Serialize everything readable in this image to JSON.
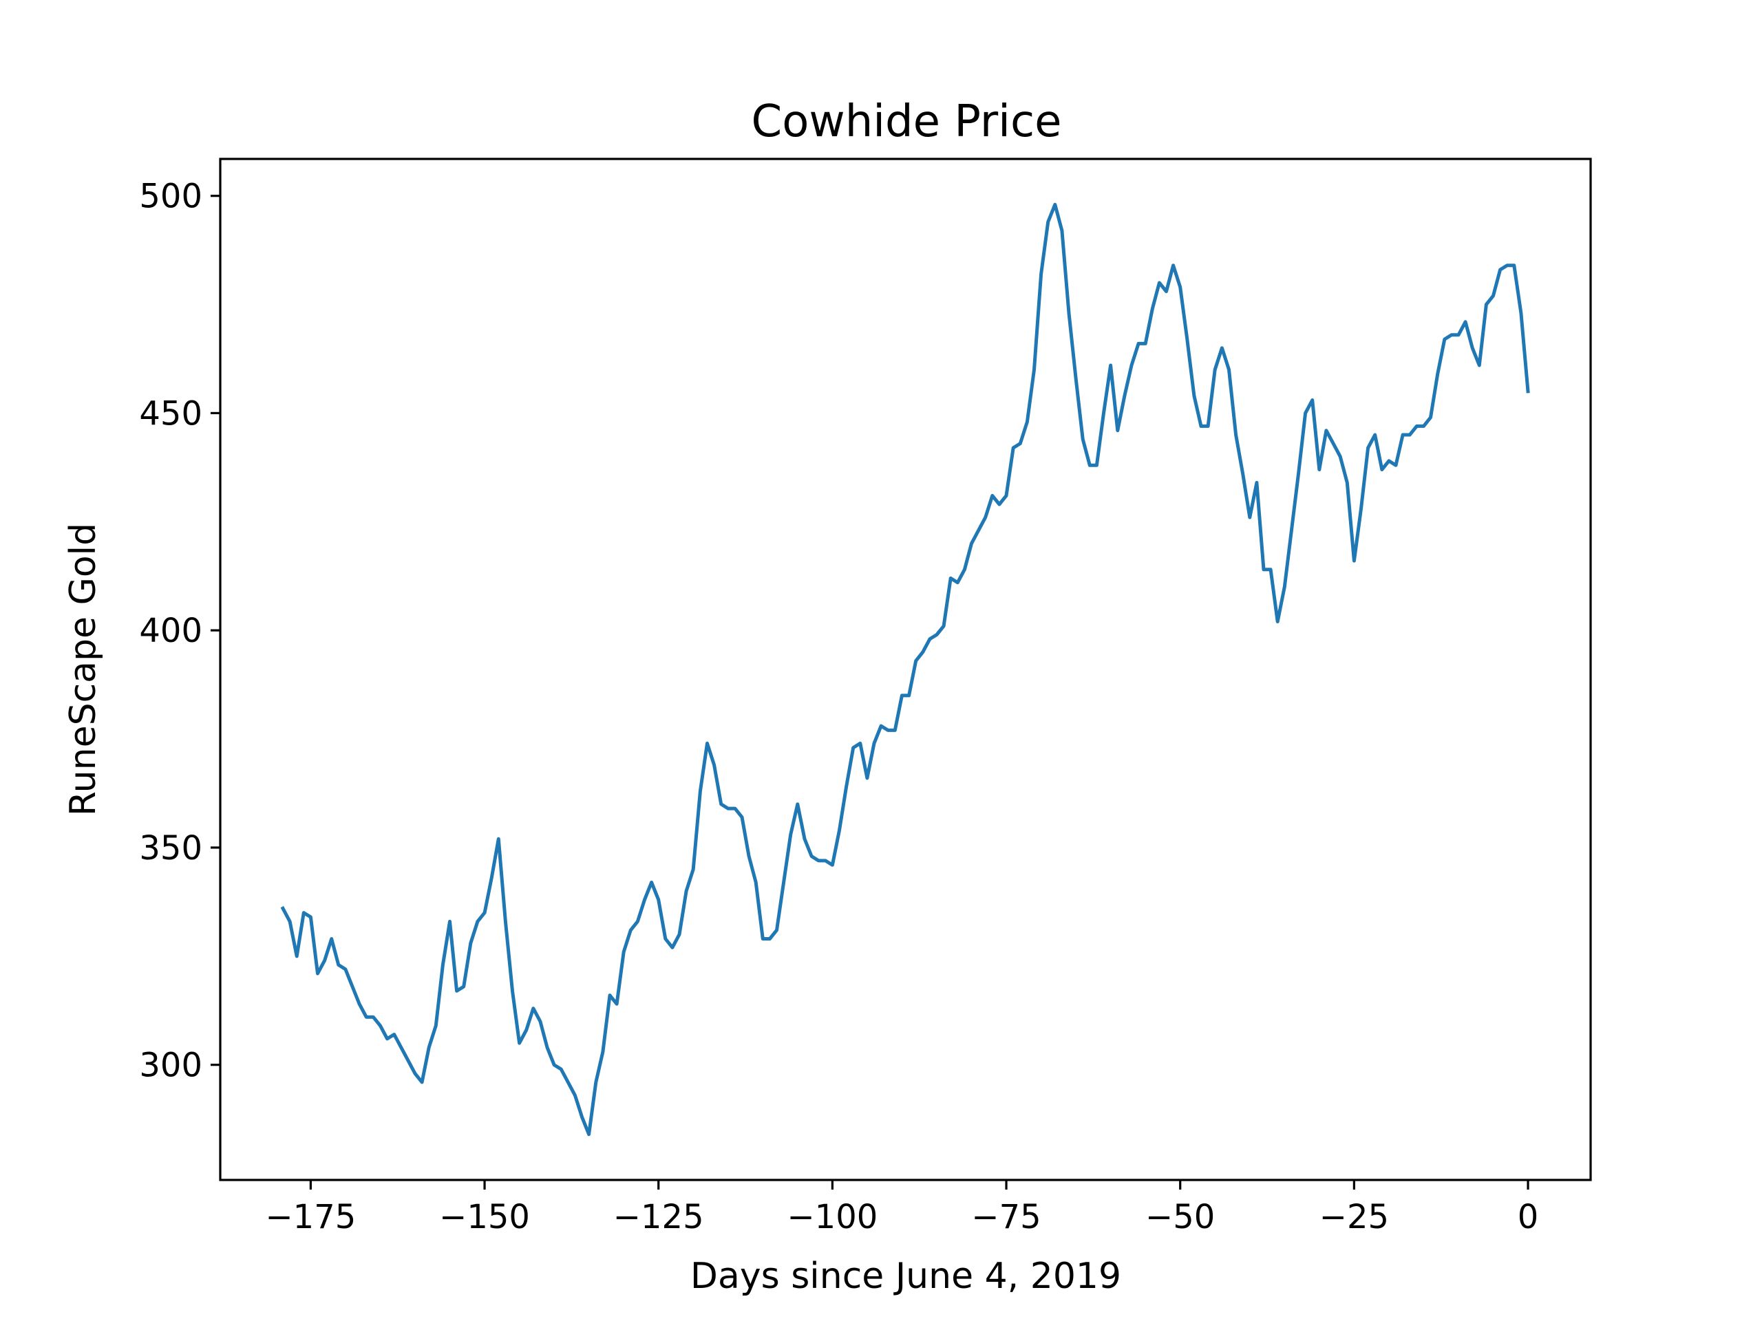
{
  "chart_data": {
    "type": "line",
    "title": "Cowhide Price",
    "xlabel": "Days since June 4, 2019",
    "ylabel": "RuneScape Gold",
    "xlim": [
      -188,
      9
    ],
    "ylim": [
      273.5,
      508.5
    ],
    "xticks": [
      -175,
      -150,
      -125,
      -100,
      -75,
      -50,
      -25,
      0
    ],
    "xtick_labels": [
      "−175",
      "−150",
      "−125",
      "−100",
      "−75",
      "−50",
      "−25",
      "0"
    ],
    "yticks": [
      300,
      350,
      400,
      450,
      500
    ],
    "ytick_labels": [
      "300",
      "350",
      "400",
      "450",
      "500"
    ],
    "grid": false,
    "series": [
      {
        "color": "#1f77b4",
        "points": [
          [
            -179,
            336
          ],
          [
            -178,
            333
          ],
          [
            -177,
            325
          ],
          [
            -176,
            335
          ],
          [
            -175,
            334
          ],
          [
            -174,
            321
          ],
          [
            -173,
            324
          ],
          [
            -172,
            329
          ],
          [
            -171,
            323
          ],
          [
            -170,
            322
          ],
          [
            -169,
            318
          ],
          [
            -168,
            314
          ],
          [
            -167,
            311
          ],
          [
            -166,
            311
          ],
          [
            -165,
            309
          ],
          [
            -164,
            306
          ],
          [
            -163,
            307
          ],
          [
            -162,
            304
          ],
          [
            -161,
            301
          ],
          [
            -160,
            298
          ],
          [
            -159,
            296
          ],
          [
            -158,
            304
          ],
          [
            -157,
            309
          ],
          [
            -156,
            323
          ],
          [
            -155,
            333
          ],
          [
            -154,
            317
          ],
          [
            -153,
            318
          ],
          [
            -152,
            328
          ],
          [
            -151,
            333
          ],
          [
            -150,
            335
          ],
          [
            -149,
            343
          ],
          [
            -148,
            352
          ],
          [
            -147,
            333
          ],
          [
            -146,
            317
          ],
          [
            -145,
            305
          ],
          [
            -144,
            308
          ],
          [
            -143,
            313
          ],
          [
            -142,
            310
          ],
          [
            -141,
            304
          ],
          [
            -140,
            300
          ],
          [
            -139,
            299
          ],
          [
            -138,
            296
          ],
          [
            -137,
            293
          ],
          [
            -136,
            288
          ],
          [
            -135,
            284
          ],
          [
            -134,
            296
          ],
          [
            -133,
            303
          ],
          [
            -132,
            316
          ],
          [
            -131,
            314
          ],
          [
            -130,
            326
          ],
          [
            -129,
            331
          ],
          [
            -128,
            333
          ],
          [
            -127,
            338
          ],
          [
            -126,
            342
          ],
          [
            -125,
            338
          ],
          [
            -124,
            329
          ],
          [
            -123,
            327
          ],
          [
            -122,
            330
          ],
          [
            -121,
            340
          ],
          [
            -120,
            345
          ],
          [
            -119,
            363
          ],
          [
            -118,
            374
          ],
          [
            -117,
            369
          ],
          [
            -116,
            360
          ],
          [
            -115,
            359
          ],
          [
            -114,
            359
          ],
          [
            -113,
            357
          ],
          [
            -112,
            348
          ],
          [
            -111,
            342
          ],
          [
            -110,
            329
          ],
          [
            -109,
            329
          ],
          [
            -108,
            331
          ],
          [
            -107,
            342
          ],
          [
            -106,
            353
          ],
          [
            -105,
            360
          ],
          [
            -104,
            352
          ],
          [
            -103,
            348
          ],
          [
            -102,
            347
          ],
          [
            -101,
            347
          ],
          [
            -100,
            346
          ],
          [
            -99,
            354
          ],
          [
            -98,
            364
          ],
          [
            -97,
            373
          ],
          [
            -96,
            374
          ],
          [
            -95,
            366
          ],
          [
            -94,
            374
          ],
          [
            -93,
            378
          ],
          [
            -92,
            377
          ],
          [
            -91,
            377
          ],
          [
            -90,
            385
          ],
          [
            -89,
            385
          ],
          [
            -88,
            393
          ],
          [
            -87,
            395
          ],
          [
            -86,
            398
          ],
          [
            -85,
            399
          ],
          [
            -84,
            401
          ],
          [
            -83,
            412
          ],
          [
            -82,
            411
          ],
          [
            -81,
            414
          ],
          [
            -80,
            420
          ],
          [
            -79,
            423
          ],
          [
            -78,
            426
          ],
          [
            -77,
            431
          ],
          [
            -76,
            429
          ],
          [
            -75,
            431
          ],
          [
            -74,
            442
          ],
          [
            -73,
            443
          ],
          [
            -72,
            448
          ],
          [
            -71,
            460
          ],
          [
            -70,
            482
          ],
          [
            -69,
            494
          ],
          [
            -68,
            498
          ],
          [
            -67,
            492
          ],
          [
            -66,
            473
          ],
          [
            -65,
            458
          ],
          [
            -64,
            444
          ],
          [
            -63,
            438
          ],
          [
            -62,
            438
          ],
          [
            -61,
            450
          ],
          [
            -60,
            461
          ],
          [
            -59,
            446
          ],
          [
            -58,
            454
          ],
          [
            -57,
            461
          ],
          [
            -56,
            466
          ],
          [
            -55,
            466
          ],
          [
            -54,
            474
          ],
          [
            -53,
            480
          ],
          [
            -52,
            478
          ],
          [
            -51,
            484
          ],
          [
            -50,
            479
          ],
          [
            -49,
            467
          ],
          [
            -48,
            454
          ],
          [
            -47,
            447
          ],
          [
            -46,
            447
          ],
          [
            -45,
            460
          ],
          [
            -44,
            465
          ],
          [
            -43,
            460
          ],
          [
            -42,
            445
          ],
          [
            -41,
            436
          ],
          [
            -40,
            426
          ],
          [
            -39,
            434
          ],
          [
            -38,
            414
          ],
          [
            -37,
            414
          ],
          [
            -36,
            402
          ],
          [
            -35,
            410
          ],
          [
            -34,
            423
          ],
          [
            -33,
            436
          ],
          [
            -32,
            450
          ],
          [
            -31,
            453
          ],
          [
            -30,
            437
          ],
          [
            -29,
            446
          ],
          [
            -28,
            443
          ],
          [
            -27,
            440
          ],
          [
            -26,
            434
          ],
          [
            -25,
            416
          ],
          [
            -24,
            428
          ],
          [
            -23,
            442
          ],
          [
            -22,
            445
          ],
          [
            -21,
            437
          ],
          [
            -20,
            439
          ],
          [
            -19,
            438
          ],
          [
            -18,
            445
          ],
          [
            -17,
            445
          ],
          [
            -16,
            447
          ],
          [
            -15,
            447
          ],
          [
            -14,
            449
          ],
          [
            -13,
            459
          ],
          [
            -12,
            467
          ],
          [
            -11,
            468
          ],
          [
            -10,
            468
          ],
          [
            -9,
            471
          ],
          [
            -8,
            465
          ],
          [
            -7,
            461
          ],
          [
            -6,
            475
          ],
          [
            -5,
            477
          ],
          [
            -4,
            483
          ],
          [
            -3,
            484
          ],
          [
            -2,
            484
          ],
          [
            -1,
            473
          ],
          [
            0,
            455
          ]
        ]
      }
    ]
  }
}
